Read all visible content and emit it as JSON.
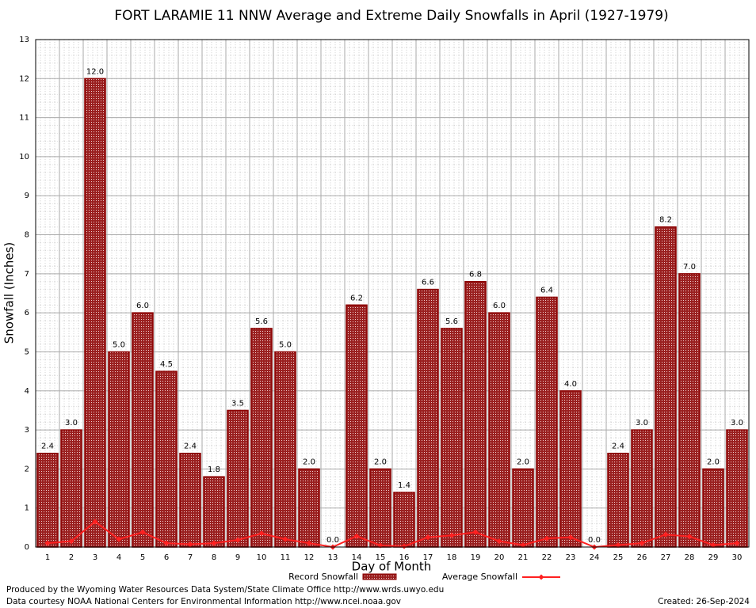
{
  "chart_data": {
    "type": "bar",
    "title": "FORT LARAMIE 11 NNW Average and Extreme Daily Snowfalls in April (1927-1979)",
    "x_label": "Day of Month",
    "y_label": "Snowfall (Inches)",
    "categories": [
      "1",
      "2",
      "3",
      "4",
      "5",
      "6",
      "7",
      "8",
      "9",
      "10",
      "11",
      "12",
      "13",
      "14",
      "15",
      "16",
      "17",
      "18",
      "19",
      "20",
      "21",
      "22",
      "23",
      "24",
      "25",
      "26",
      "27",
      "28",
      "29",
      "30"
    ],
    "series": [
      {
        "name": "Record Snowfall",
        "color": "#8b0000",
        "values": [
          2.4,
          3.0,
          12.0,
          5.0,
          6.0,
          4.5,
          2.4,
          1.8,
          3.5,
          5.6,
          5.0,
          2.0,
          0.0,
          6.2,
          2.0,
          1.4,
          6.6,
          5.6,
          6.8,
          6.0,
          2.0,
          6.4,
          4.0,
          0.0,
          2.4,
          3.0,
          8.2,
          7.0,
          2.0,
          3.0
        ],
        "value_labels": [
          "2.4",
          "3.0",
          "12.0",
          "5.0",
          "6.0",
          "4.5",
          "2.4",
          "1.8",
          "3.5",
          "5.6",
          "5.0",
          "2.0",
          "0.0",
          "6.2",
          "2.0",
          "1.4",
          "6.6",
          "5.6",
          "6.8",
          "6.0",
          "2.0",
          "6.4",
          "4.0",
          "0.0",
          "2.4",
          "3.0",
          "8.2",
          "7.0",
          "2.0",
          "3.0"
        ]
      },
      {
        "name": "Average Snowfall",
        "color": "#ff2020",
        "values": [
          0.1,
          0.15,
          0.65,
          0.2,
          0.38,
          0.1,
          0.07,
          0.1,
          0.18,
          0.35,
          0.2,
          0.1,
          0.0,
          0.28,
          0.04,
          0.02,
          0.25,
          0.3,
          0.38,
          0.15,
          0.05,
          0.22,
          0.25,
          0.0,
          0.05,
          0.1,
          0.32,
          0.27,
          0.05,
          0.1
        ]
      }
    ],
    "ylim": [
      0,
      13
    ],
    "yticks": [
      0,
      1,
      2,
      3,
      4,
      5,
      6,
      7,
      8,
      9,
      10,
      11,
      12,
      13
    ],
    "grid": true,
    "footer": {
      "produced": "Produced by the Wyoming Water Resources Data System/State Climate Office http://www.wrds.uwyo.edu",
      "courtesy": "Data courtesy NOAA National Centers for Environmental Information http://www.ncei.noaa.gov",
      "created": "Created:  26-Sep-2024"
    }
  }
}
